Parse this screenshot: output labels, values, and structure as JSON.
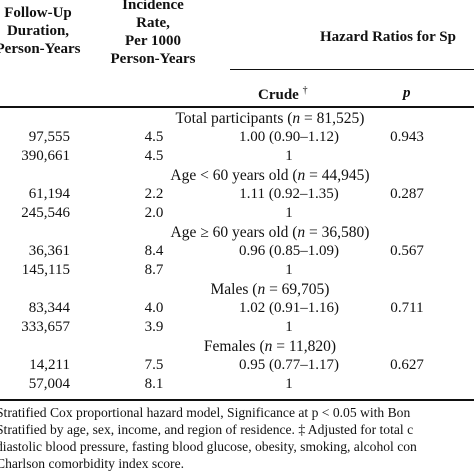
{
  "header": {
    "col_followup": [
      "Follow-Up",
      "Duration,",
      "Person-Years"
    ],
    "col_incidence": [
      "Incidence",
      "Rate,",
      "Per 1000",
      "Person-Years"
    ],
    "col_hazard": "Hazard Ratios for Sp",
    "sub_crude": "Crude",
    "sub_crude_mark": "†",
    "sub_p": "p"
  },
  "groups": [
    {
      "label_pre": "Total participants (",
      "label_n": "n",
      "label_post": " = 81,525)",
      "rows": [
        {
          "followup": "97,555",
          "rate": "4.5",
          "crude": "1.00 (0.90–1.12)",
          "p": "0.943"
        },
        {
          "followup": "390,661",
          "rate": "4.5",
          "crude": "1",
          "p": ""
        }
      ]
    },
    {
      "label_pre": "Age < 60 years old (",
      "label_n": "n",
      "label_post": " = 44,945)",
      "rows": [
        {
          "followup": "61,194",
          "rate": "2.2",
          "crude": "1.11 (0.92–1.35)",
          "p": "0.287"
        },
        {
          "followup": "245,546",
          "rate": "2.0",
          "crude": "1",
          "p": ""
        }
      ]
    },
    {
      "label_pre": "Age ≥ 60 years old (",
      "label_n": "n",
      "label_post": " = 36,580)",
      "rows": [
        {
          "followup": "36,361",
          "rate": "8.4",
          "crude": "0.96 (0.85–1.09)",
          "p": "0.567"
        },
        {
          "followup": "145,115",
          "rate": "8.7",
          "crude": "1",
          "p": ""
        }
      ]
    },
    {
      "label_pre": "Males (",
      "label_n": "n",
      "label_post": " = 69,705)",
      "rows": [
        {
          "followup": "83,344",
          "rate": "4.0",
          "crude": "1.02 (0.91–1.16)",
          "p": "0.711"
        },
        {
          "followup": "333,657",
          "rate": "3.9",
          "crude": "1",
          "p": ""
        }
      ]
    },
    {
      "label_pre": "Females (",
      "label_n": "n",
      "label_post": " = 11,820)",
      "rows": [
        {
          "followup": "14,211",
          "rate": "7.5",
          "crude": "0.95 (0.77–1.17)",
          "p": "0.627"
        },
        {
          "followup": "57,004",
          "rate": "8.1",
          "crude": "1",
          "p": ""
        }
      ]
    }
  ],
  "footnotes": [
    "Stratified Cox proportional hazard model, Significance at p < 0.05 with Bon",
    "Stratified by age, sex, income, and region of residence. ‡ Adjusted for total c",
    "diastolic blood pressure, fasting blood glucose, obesity, smoking, alcohol con",
    "Charlson comorbidity index score."
  ]
}
